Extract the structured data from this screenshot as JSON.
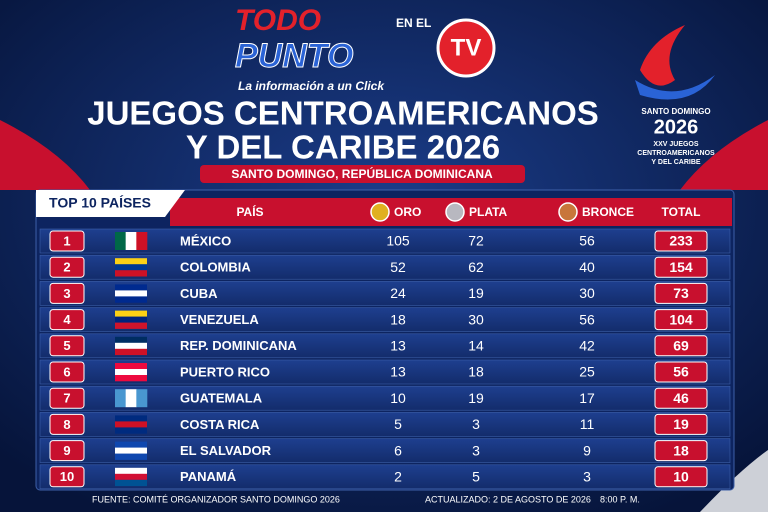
{
  "header": {
    "logo": {
      "todo": "TODO",
      "en_el": "EN EL",
      "punto": "PUNTO",
      "tv": "TV"
    },
    "tagline": "La información a un Click",
    "title_line1": "JUEGOS CENTROAMERICANOS",
    "title_line2": "Y DEL CARIBE 2026",
    "subtitle": "SANTO DOMINGO, REPÚBLICA DOMINICANA",
    "emblem": {
      "city": "SANTO DOMINGO",
      "year": "2026",
      "line1": "XXV JUEGOS",
      "line2": "CENTROAMERICANOS",
      "line3": "Y DEL CARIBE"
    }
  },
  "table": {
    "label": "TOP 10 PAÍSES",
    "columns": [
      "PAÍS",
      "ORO",
      "PLATA",
      "BRONCE",
      "TOTAL"
    ],
    "rows": [
      [
        "1",
        "MÉXICO",
        "105",
        "72",
        "56",
        "233"
      ],
      [
        "2",
        "COLOMBIA",
        "52",
        "62",
        "40",
        "154"
      ],
      [
        "3",
        "CUBA",
        "24",
        "19",
        "30",
        "73"
      ],
      [
        "4",
        "VENEZUELA",
        "18",
        "30",
        "56",
        "104"
      ],
      [
        "5",
        "REP. DOMINICANA",
        "13",
        "14",
        "42",
        "69"
      ],
      [
        "6",
        "PUERTO RICO",
        "13",
        "18",
        "25",
        "56"
      ],
      [
        "7",
        "GUATEMALA",
        "10",
        "19",
        "17",
        "46"
      ],
      [
        "8",
        "COSTA RICA",
        "5",
        "3",
        "11",
        "19"
      ],
      [
        "9",
        "EL SALVADOR",
        "6",
        "3",
        "9",
        "18"
      ],
      [
        "10",
        "PANAMÁ",
        "2",
        "5",
        "3",
        "10"
      ]
    ]
  },
  "footer": {
    "source": "FUENTE: COMITÉ ORGANIZADOR SANTO DOMINGO 2026",
    "updated": "ACTUALIZADO: 2 DE AGOSTO DE 2026",
    "time": "8:00 P. M."
  }
}
